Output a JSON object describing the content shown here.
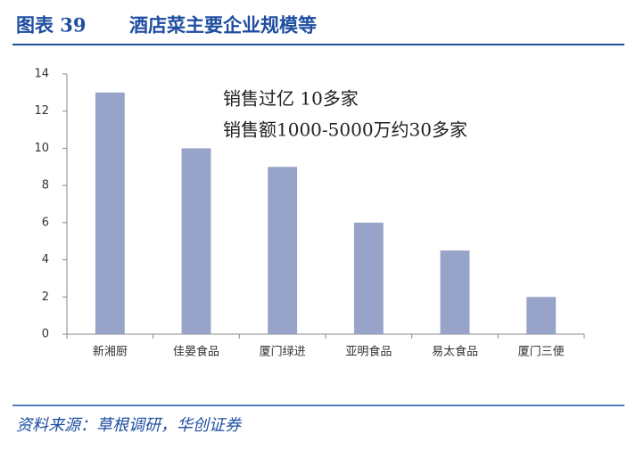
{
  "chart_data": {
    "type": "bar",
    "figure_label": "图表 39",
    "title": "酒店菜主要企业规模等",
    "categories": [
      "新湘厨",
      "佳晏食品",
      "厦门绿进",
      "亚明食品",
      "易太食品",
      "厦门三便"
    ],
    "values": [
      13,
      10,
      9,
      6,
      4.5,
      2
    ],
    "color": "#97a3c8",
    "ylim": [
      0,
      14
    ],
    "yticks": [
      0,
      2,
      4,
      6,
      8,
      10,
      12,
      14
    ],
    "grid": false,
    "annotations": [
      "销售过亿 10多家",
      "销售额1000-5000万约30多家"
    ],
    "source": "资料来源：草根调研，华创证券"
  }
}
